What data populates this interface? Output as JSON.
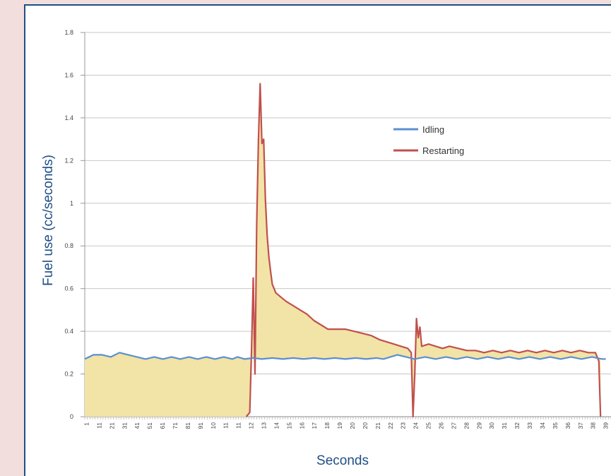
{
  "chart_data": {
    "type": "area",
    "title": "",
    "xlabel": "Seconds",
    "ylabel": "Fuel use (cc/seconds)",
    "ylim": [
      0,
      1.8
    ],
    "yticks": [
      "0",
      "0.2",
      "0.4",
      "0.6",
      "0.8",
      "1",
      "1.2",
      "1.4",
      "1.6",
      "1.8"
    ],
    "xtick_labels": [
      "1",
      "11",
      "21",
      "31",
      "41",
      "51",
      "61",
      "71",
      "81",
      "91",
      "10",
      "11",
      "11",
      "12",
      "13",
      "14",
      "15",
      "16",
      "17",
      "18",
      "19",
      "20",
      "20",
      "21",
      "22",
      "23",
      "24",
      "25",
      "26",
      "27",
      "28",
      "29",
      "30",
      "31",
      "32",
      "33",
      "34",
      "35",
      "36",
      "37",
      "38",
      "39"
    ],
    "grid": true,
    "legend": {
      "position": "top-center",
      "entries": [
        {
          "name": "Idling",
          "color": "#5b8fd1"
        },
        {
          "name": "Restarting",
          "color": "#c0504d"
        }
      ]
    },
    "fill_between_color": "#f2e3a6",
    "series": [
      {
        "name": "Idling",
        "color": "#5b8fd1",
        "points": [
          [
            0,
            0.27
          ],
          [
            5,
            0.29
          ],
          [
            10,
            0.29
          ],
          [
            15,
            0.28
          ],
          [
            20,
            0.3
          ],
          [
            25,
            0.29
          ],
          [
            30,
            0.28
          ],
          [
            35,
            0.27
          ],
          [
            40,
            0.28
          ],
          [
            45,
            0.27
          ],
          [
            50,
            0.28
          ],
          [
            55,
            0.27
          ],
          [
            60,
            0.28
          ],
          [
            65,
            0.27
          ],
          [
            70,
            0.28
          ],
          [
            75,
            0.27
          ],
          [
            80,
            0.28
          ],
          [
            85,
            0.27
          ],
          [
            88,
            0.28
          ],
          [
            92,
            0.27
          ],
          [
            97,
            0.275
          ],
          [
            102,
            0.27
          ],
          [
            108,
            0.275
          ],
          [
            114,
            0.27
          ],
          [
            120,
            0.275
          ],
          [
            126,
            0.27
          ],
          [
            132,
            0.275
          ],
          [
            138,
            0.27
          ],
          [
            144,
            0.275
          ],
          [
            150,
            0.27
          ],
          [
            156,
            0.275
          ],
          [
            162,
            0.27
          ],
          [
            168,
            0.275
          ],
          [
            172,
            0.27
          ],
          [
            176,
            0.28
          ],
          [
            180,
            0.29
          ],
          [
            185,
            0.28
          ],
          [
            190,
            0.27
          ],
          [
            196,
            0.28
          ],
          [
            202,
            0.27
          ],
          [
            208,
            0.28
          ],
          [
            214,
            0.27
          ],
          [
            220,
            0.28
          ],
          [
            226,
            0.27
          ],
          [
            232,
            0.28
          ],
          [
            238,
            0.27
          ],
          [
            244,
            0.28
          ],
          [
            250,
            0.27
          ],
          [
            256,
            0.28
          ],
          [
            262,
            0.27
          ],
          [
            268,
            0.28
          ],
          [
            274,
            0.27
          ],
          [
            280,
            0.28
          ],
          [
            286,
            0.27
          ],
          [
            292,
            0.28
          ],
          [
            298,
            0.27
          ],
          [
            300,
            0.27
          ]
        ]
      },
      {
        "name": "Restarting",
        "color": "#c0504d",
        "points": [
          [
            93,
            0
          ],
          [
            95,
            0.02
          ],
          [
            96,
            0.3
          ],
          [
            97,
            0.65
          ],
          [
            98,
            0.2
          ],
          [
            99,
            0.9
          ],
          [
            100,
            1.3
          ],
          [
            101,
            1.56
          ],
          [
            102,
            1.28
          ],
          [
            103,
            1.3
          ],
          [
            104,
            1.02
          ],
          [
            105,
            0.85
          ],
          [
            106,
            0.75
          ],
          [
            107,
            0.68
          ],
          [
            108,
            0.62
          ],
          [
            110,
            0.58
          ],
          [
            113,
            0.56
          ],
          [
            116,
            0.54
          ],
          [
            120,
            0.52
          ],
          [
            124,
            0.5
          ],
          [
            128,
            0.48
          ],
          [
            132,
            0.45
          ],
          [
            136,
            0.43
          ],
          [
            140,
            0.41
          ],
          [
            145,
            0.41
          ],
          [
            150,
            0.41
          ],
          [
            155,
            0.4
          ],
          [
            160,
            0.39
          ],
          [
            165,
            0.38
          ],
          [
            170,
            0.36
          ],
          [
            174,
            0.35
          ],
          [
            178,
            0.34
          ],
          [
            182,
            0.33
          ],
          [
            186,
            0.32
          ],
          [
            188,
            0.3
          ],
          [
            189,
            0.0
          ],
          [
            190,
            0.2
          ],
          [
            191,
            0.46
          ],
          [
            192,
            0.37
          ],
          [
            193,
            0.42
          ],
          [
            194,
            0.33
          ],
          [
            198,
            0.34
          ],
          [
            202,
            0.33
          ],
          [
            206,
            0.32
          ],
          [
            210,
            0.33
          ],
          [
            215,
            0.32
          ],
          [
            220,
            0.31
          ],
          [
            225,
            0.31
          ],
          [
            230,
            0.3
          ],
          [
            235,
            0.31
          ],
          [
            240,
            0.3
          ],
          [
            245,
            0.31
          ],
          [
            250,
            0.3
          ],
          [
            255,
            0.31
          ],
          [
            260,
            0.3
          ],
          [
            265,
            0.31
          ],
          [
            270,
            0.3
          ],
          [
            275,
            0.31
          ],
          [
            280,
            0.3
          ],
          [
            285,
            0.31
          ],
          [
            290,
            0.3
          ],
          [
            294,
            0.3
          ],
          [
            296,
            0.26
          ],
          [
            297,
            0.0
          ]
        ]
      }
    ]
  }
}
